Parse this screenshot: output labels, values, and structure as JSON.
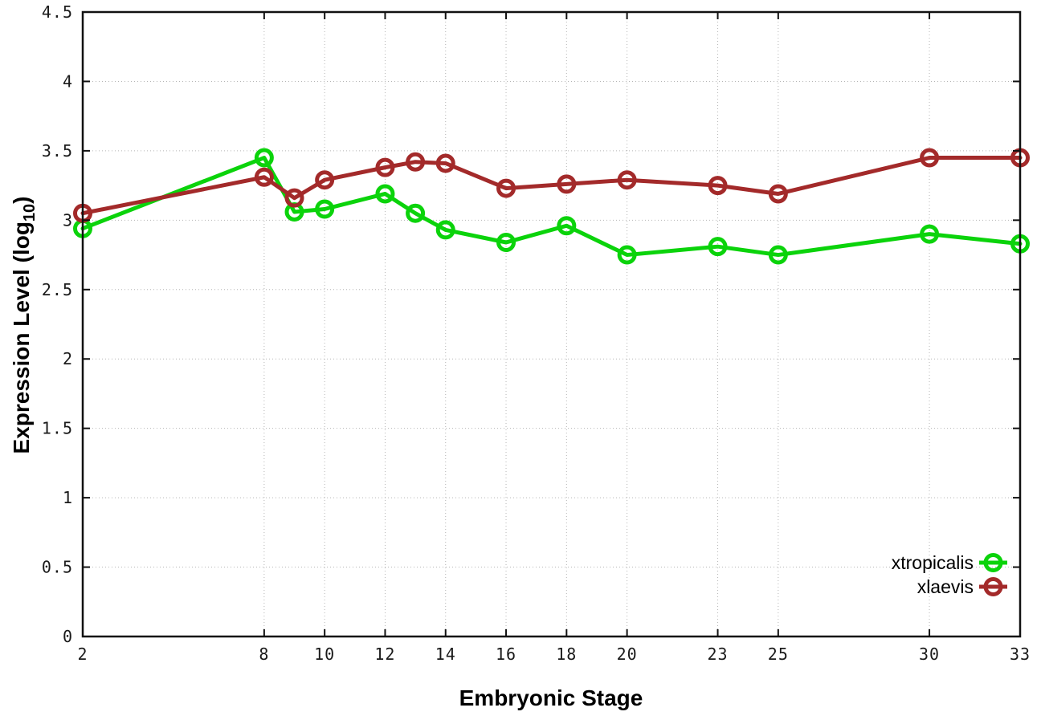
{
  "chart_data": {
    "type": "line",
    "title": "",
    "xlabel": "Embryonic Stage",
    "ylabel": "Expression Level (log10)",
    "ylabel_parts": {
      "pre": "Expression Level (log",
      "sub": "10",
      "post": ")"
    },
    "x": [
      2,
      8,
      9,
      10,
      12,
      13,
      14,
      16,
      18,
      20,
      23,
      25,
      30,
      33
    ],
    "series": [
      {
        "name": "xtropicalis",
        "color": "#0bd30b",
        "values": [
          2.94,
          3.45,
          3.06,
          3.08,
          3.19,
          3.05,
          2.93,
          2.84,
          2.96,
          2.75,
          2.81,
          2.75,
          2.9,
          2.83
        ]
      },
      {
        "name": "xlaevis",
        "color": "#a32a2a",
        "values": [
          3.05,
          3.31,
          3.16,
          3.29,
          3.38,
          3.42,
          3.41,
          3.23,
          3.26,
          3.29,
          3.25,
          3.19,
          3.45,
          3.45
        ]
      }
    ],
    "x_ticks": [
      2,
      8,
      10,
      12,
      14,
      16,
      18,
      20,
      23,
      25,
      30,
      33
    ],
    "x_tick_labels": [
      "2",
      "8",
      "10",
      "12",
      "14",
      "16",
      "18",
      "20",
      "23",
      "25",
      "30",
      "33"
    ],
    "y_ticks": [
      0,
      0.5,
      1,
      1.5,
      2,
      2.5,
      3,
      3.5,
      4,
      4.5
    ],
    "y_tick_labels": [
      "0",
      "0.5",
      "1",
      "1.5",
      "2",
      "2.5",
      "3",
      "3.5",
      "4",
      "4.5"
    ],
    "xlim": [
      2,
      33
    ],
    "ylim": [
      0,
      4.5
    ],
    "grid": true,
    "marker": "open-circle",
    "legend_position": "inside-bottom-right",
    "legend": [
      "xtropicalis",
      "xlaevis"
    ]
  },
  "colors": {
    "background": "#ffffff",
    "axis": "#111111",
    "grid": "#b5b5b5",
    "xtropicalis": "#0bd30b",
    "xlaevis": "#a32a2a"
  }
}
